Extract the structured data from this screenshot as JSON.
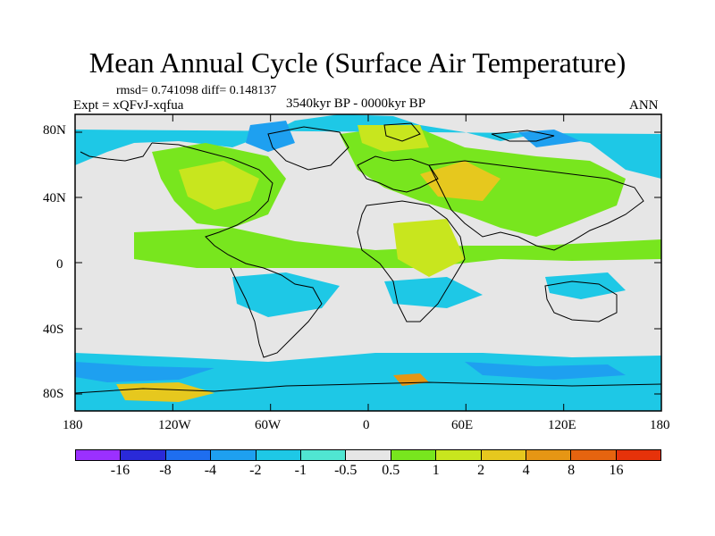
{
  "title": "Mean Annual Cycle (Surface Air Temperature)",
  "stats": "rmsd= 0.741098 diff= 0.148137",
  "experiment": "Expt = xQFvJ-xqfua",
  "period": "3540kyr BP - 0000kyr BP",
  "season": "ANN",
  "y_ticks": [
    "80N",
    "40N",
    "0",
    "40S",
    "80S"
  ],
  "x_ticks": [
    "180",
    "120W",
    "60W",
    "0",
    "60E",
    "120E",
    "180"
  ],
  "colorbar": {
    "labels": [
      "-16",
      "-8",
      "-4",
      "-2",
      "-1",
      "-0.5",
      "0.5",
      "1",
      "2",
      "4",
      "8",
      "16"
    ],
    "colors": [
      "#9b30ff",
      "#2a2ad8",
      "#1e6ef0",
      "#1ea0f0",
      "#1ec8e6",
      "#50e6d2",
      "#e6e6e6",
      "#78e61e",
      "#c8e61e",
      "#e6c81e",
      "#e69614",
      "#e6640f",
      "#e6320a"
    ]
  },
  "map_colors": {
    "ocean_neutral": "#e6e6e6",
    "warm_light": "#78e61e",
    "warm_mid": "#c8e61e",
    "warm_high": "#e6c81e",
    "warm_strong": "#e69614",
    "cool_light": "#1ec8e6",
    "cool_mid": "#1ea0f0",
    "cool_strong": "#1e6ef0"
  }
}
